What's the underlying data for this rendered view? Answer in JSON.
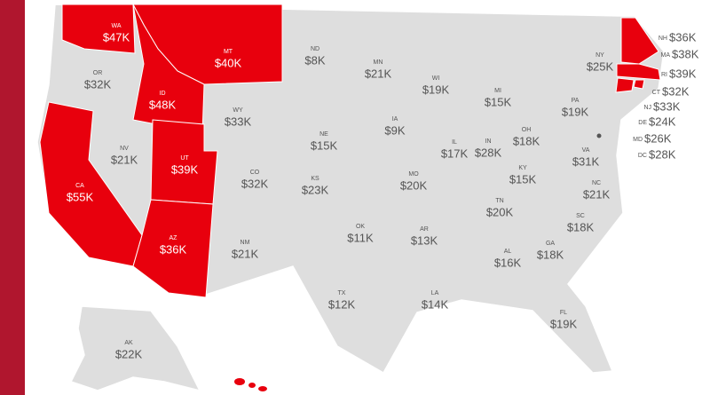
{
  "highlight_color": "#e8000d",
  "states": [
    {
      "code": "WA",
      "value": "$47K",
      "highlighted": true
    },
    {
      "code": "MT",
      "value": "$40K",
      "highlighted": true
    },
    {
      "code": "ND",
      "value": "$8K",
      "highlighted": false
    },
    {
      "code": "MN",
      "value": "$21K",
      "highlighted": false
    },
    {
      "code": "WI",
      "value": "$19K",
      "highlighted": false
    },
    {
      "code": "MI",
      "value": "$15K",
      "highlighted": false
    },
    {
      "code": "NY",
      "value": "$25K",
      "highlighted": false
    },
    {
      "code": "NH",
      "value": "$36K",
      "highlighted": true
    },
    {
      "code": "MA",
      "value": "$38K",
      "highlighted": true
    },
    {
      "code": "RI",
      "value": "$39K",
      "highlighted": true
    },
    {
      "code": "CT",
      "value": "$32K",
      "highlighted": true
    },
    {
      "code": "NJ",
      "value": "$33K",
      "highlighted": false
    },
    {
      "code": "DE",
      "value": "$24K",
      "highlighted": false
    },
    {
      "code": "MD",
      "value": "$26K",
      "highlighted": false
    },
    {
      "code": "DC",
      "value": "$28K",
      "highlighted": false
    },
    {
      "code": "OR",
      "value": "$32K",
      "highlighted": false
    },
    {
      "code": "ID",
      "value": "$48K",
      "highlighted": true
    },
    {
      "code": "WY",
      "value": "$33K",
      "highlighted": false
    },
    {
      "code": "IA",
      "value": "$9K",
      "highlighted": false
    },
    {
      "code": "PA",
      "value": "$19K",
      "highlighted": false
    },
    {
      "code": "OH",
      "value": "$18K",
      "highlighted": false
    },
    {
      "code": "IN",
      "value": "$28K",
      "highlighted": false
    },
    {
      "code": "IL",
      "value": "$17K",
      "highlighted": false
    },
    {
      "code": "NE",
      "value": "$15K",
      "highlighted": false
    },
    {
      "code": "NV",
      "value": "$21K",
      "highlighted": false
    },
    {
      "code": "UT",
      "value": "$39K",
      "highlighted": true
    },
    {
      "code": "CO",
      "value": "$32K",
      "highlighted": false
    },
    {
      "code": "KS",
      "value": "$23K",
      "highlighted": false
    },
    {
      "code": "MO",
      "value": "$20K",
      "highlighted": false
    },
    {
      "code": "KY",
      "value": "$15K",
      "highlighted": false
    },
    {
      "code": "VA",
      "value": "$31K",
      "highlighted": false
    },
    {
      "code": "CA",
      "value": "$55K",
      "highlighted": true
    },
    {
      "code": "NC",
      "value": "$21K",
      "highlighted": false
    },
    {
      "code": "TN",
      "value": "$20K",
      "highlighted": false
    },
    {
      "code": "SC",
      "value": "$18K",
      "highlighted": false
    },
    {
      "code": "OK",
      "value": "$11K",
      "highlighted": false
    },
    {
      "code": "AR",
      "value": "$13K",
      "highlighted": false
    },
    {
      "code": "AZ",
      "value": "$36K",
      "highlighted": true
    },
    {
      "code": "NM",
      "value": "$21K",
      "highlighted": false
    },
    {
      "code": "GA",
      "value": "$18K",
      "highlighted": false
    },
    {
      "code": "AL",
      "value": "$16K",
      "highlighted": false
    },
    {
      "code": "TX",
      "value": "$12K",
      "highlighted": false
    },
    {
      "code": "LA",
      "value": "$14K",
      "highlighted": false
    },
    {
      "code": "FL",
      "value": "$19K",
      "highlighted": false
    },
    {
      "code": "AK",
      "value": "$22K",
      "highlighted": false
    }
  ]
}
